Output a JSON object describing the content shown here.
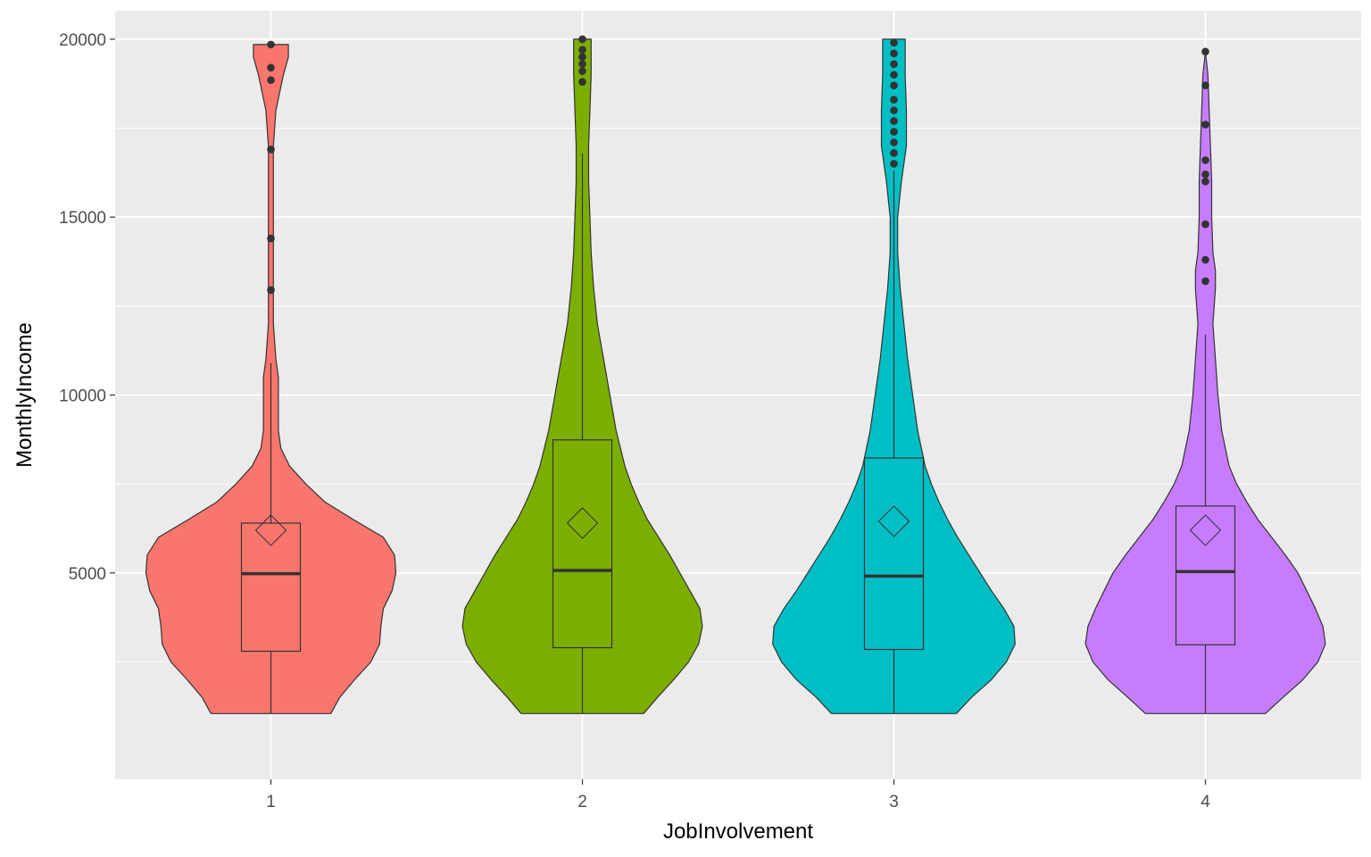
{
  "chart_data": {
    "type": "violin",
    "xlabel": "JobInvolvement",
    "ylabel": "MonthlyIncome",
    "categories": [
      "1",
      "2",
      "3",
      "4"
    ],
    "ylim": [
      -800,
      20800
    ],
    "y_ticks": [
      5000,
      10000,
      15000,
      20000
    ],
    "y_tick_labels": [
      "5000",
      "10000",
      "15000",
      "20000"
    ],
    "y_minor_ticks": [
      2500,
      7500,
      12500,
      17500
    ],
    "grid": true,
    "legend": "none",
    "panel_background": "#ebebeb",
    "grid_color": "#ffffff",
    "groups": [
      {
        "category": "1",
        "color": "#f8766d",
        "violin_halfwidth_profile": [
          [
            1050,
            0.48
          ],
          [
            1500,
            0.55
          ],
          [
            2000,
            0.67
          ],
          [
            2500,
            0.8
          ],
          [
            3000,
            0.87
          ],
          [
            3500,
            0.88
          ],
          [
            4000,
            0.9
          ],
          [
            4500,
            0.97
          ],
          [
            5000,
            1.0
          ],
          [
            5500,
            0.99
          ],
          [
            6000,
            0.9
          ],
          [
            6500,
            0.66
          ],
          [
            7000,
            0.43
          ],
          [
            7500,
            0.28
          ],
          [
            8000,
            0.15
          ],
          [
            8500,
            0.08
          ],
          [
            9000,
            0.06
          ],
          [
            10000,
            0.06
          ],
          [
            10500,
            0.06
          ],
          [
            11000,
            0.04
          ],
          [
            12000,
            0.02
          ],
          [
            13000,
            0.02
          ],
          [
            14000,
            0.02
          ],
          [
            15000,
            0.02
          ],
          [
            16000,
            0.02
          ],
          [
            17000,
            0.02
          ],
          [
            18000,
            0.04
          ],
          [
            18500,
            0.07
          ],
          [
            19000,
            0.1
          ],
          [
            19500,
            0.14
          ],
          [
            19850,
            0.14
          ]
        ],
        "box": {
          "q1": 2800,
          "median": 4980,
          "q3": 6400,
          "whisker_low": 1051,
          "whisker_high": 10900
        },
        "mean": 6200,
        "outliers": [
          12950,
          14400,
          16900,
          18850,
          19200,
          19850
        ]
      },
      {
        "category": "2",
        "color": "#7cae00",
        "violin_halfwidth_profile": [
          [
            1050,
            0.49
          ],
          [
            1500,
            0.6
          ],
          [
            2000,
            0.73
          ],
          [
            2500,
            0.85
          ],
          [
            3000,
            0.93
          ],
          [
            3500,
            0.96
          ],
          [
            4000,
            0.94
          ],
          [
            4500,
            0.86
          ],
          [
            5000,
            0.78
          ],
          [
            5500,
            0.7
          ],
          [
            6000,
            0.61
          ],
          [
            6500,
            0.52
          ],
          [
            7000,
            0.45
          ],
          [
            7500,
            0.39
          ],
          [
            8000,
            0.34
          ],
          [
            9000,
            0.27
          ],
          [
            10000,
            0.22
          ],
          [
            11000,
            0.17
          ],
          [
            12000,
            0.12
          ],
          [
            13000,
            0.09
          ],
          [
            14000,
            0.07
          ],
          [
            15000,
            0.06
          ],
          [
            16000,
            0.05
          ],
          [
            17000,
            0.05
          ],
          [
            18000,
            0.06
          ],
          [
            19000,
            0.07
          ],
          [
            20000,
            0.07
          ]
        ],
        "box": {
          "q1": 2900,
          "median": 5070,
          "q3": 8740,
          "whisker_low": 1051,
          "whisker_high": 16800
        },
        "mean": 6400,
        "outliers": [
          18800,
          19100,
          19300,
          19500,
          19700,
          19999
        ]
      },
      {
        "category": "3",
        "color": "#00bfc4",
        "violin_halfwidth_profile": [
          [
            1050,
            0.5
          ],
          [
            1500,
            0.62
          ],
          [
            2000,
            0.78
          ],
          [
            2500,
            0.9
          ],
          [
            3000,
            0.97
          ],
          [
            3500,
            0.96
          ],
          [
            4000,
            0.88
          ],
          [
            4500,
            0.78
          ],
          [
            5000,
            0.69
          ],
          [
            5500,
            0.6
          ],
          [
            6000,
            0.51
          ],
          [
            6500,
            0.43
          ],
          [
            7000,
            0.36
          ],
          [
            7500,
            0.3
          ],
          [
            8000,
            0.25
          ],
          [
            9000,
            0.19
          ],
          [
            10000,
            0.15
          ],
          [
            11000,
            0.11
          ],
          [
            12000,
            0.08
          ],
          [
            13000,
            0.05
          ],
          [
            14000,
            0.03
          ],
          [
            15000,
            0.03
          ],
          [
            16000,
            0.06
          ],
          [
            17000,
            0.1
          ],
          [
            18000,
            0.1
          ],
          [
            19000,
            0.09
          ],
          [
            20000,
            0.09
          ]
        ],
        "box": {
          "q1": 2850,
          "median": 4910,
          "q3": 8230,
          "whisker_low": 1051,
          "whisker_high": 16300
        },
        "mean": 6450,
        "outliers": [
          16500,
          16800,
          17100,
          17400,
          17700,
          18000,
          18300,
          18700,
          19000,
          19300,
          19600,
          19900
        ]
      },
      {
        "category": "4",
        "color": "#c77cff",
        "violin_halfwidth_profile": [
          [
            1050,
            0.48
          ],
          [
            1500,
            0.62
          ],
          [
            2000,
            0.78
          ],
          [
            2500,
            0.9
          ],
          [
            3000,
            0.96
          ],
          [
            3500,
            0.94
          ],
          [
            4000,
            0.88
          ],
          [
            4500,
            0.81
          ],
          [
            5000,
            0.74
          ],
          [
            5500,
            0.64
          ],
          [
            6000,
            0.53
          ],
          [
            6500,
            0.42
          ],
          [
            7000,
            0.33
          ],
          [
            7500,
            0.25
          ],
          [
            8000,
            0.19
          ],
          [
            9000,
            0.13
          ],
          [
            10000,
            0.1
          ],
          [
            11000,
            0.08
          ],
          [
            12000,
            0.06
          ],
          [
            13000,
            0.08
          ],
          [
            13500,
            0.08
          ],
          [
            14000,
            0.06
          ],
          [
            15000,
            0.05
          ],
          [
            16000,
            0.05
          ],
          [
            17000,
            0.04
          ],
          [
            18000,
            0.03
          ],
          [
            19000,
            0.02
          ],
          [
            19650,
            0.0
          ]
        ],
        "box": {
          "q1": 2980,
          "median": 5040,
          "q3": 6880,
          "whisker_low": 1051,
          "whisker_high": 11700
        },
        "mean": 6200,
        "outliers": [
          13200,
          13800,
          14800,
          16000,
          16200,
          16600,
          17600,
          18700,
          19650
        ]
      }
    ]
  }
}
